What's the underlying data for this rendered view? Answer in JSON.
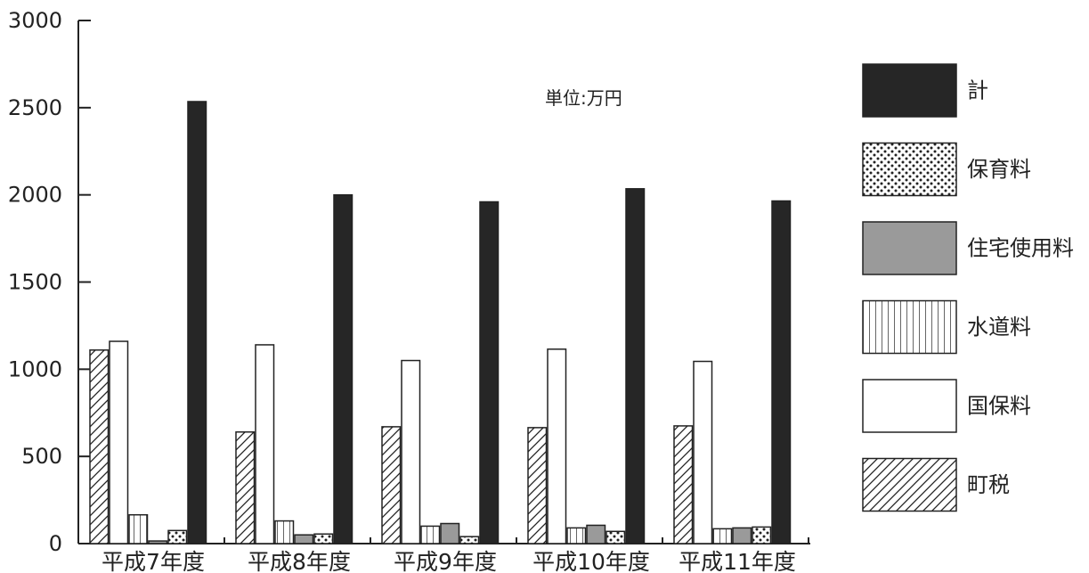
{
  "chart_data": {
    "type": "bar",
    "unit_label": "単位:万円",
    "categories": [
      "平成7年度",
      "平成8年度",
      "平成9年度",
      "平成10年度",
      "平成11年度"
    ],
    "series": [
      {
        "name": "町税",
        "pattern": "diagonal-hatch",
        "values": [
          1110,
          640,
          670,
          665,
          675
        ]
      },
      {
        "name": "国保料",
        "pattern": "white",
        "values": [
          1160,
          1140,
          1050,
          1115,
          1045
        ]
      },
      {
        "name": "水道料",
        "pattern": "vertical-lines",
        "values": [
          165,
          130,
          100,
          90,
          85
        ]
      },
      {
        "name": "住宅使用料",
        "pattern": "gray",
        "values": [
          15,
          50,
          115,
          105,
          90
        ]
      },
      {
        "name": "保育料",
        "pattern": "dots",
        "values": [
          75,
          55,
          40,
          70,
          95
        ]
      },
      {
        "name": "計",
        "pattern": "black",
        "values": [
          2535,
          2000,
          1960,
          2035,
          1965
        ]
      }
    ],
    "legend_order": [
      "計",
      "保育料",
      "住宅使用料",
      "水道料",
      "国保料",
      "町税"
    ],
    "yticks": [
      0,
      500,
      1000,
      1500,
      2000,
      2500,
      3000
    ],
    "ylim": [
      0,
      3000
    ],
    "legend_position": "right",
    "grid": false,
    "colors": {
      "axis": "#222222",
      "gray": "#9a9a9a",
      "black": "#262626",
      "white": "#ffffff"
    }
  }
}
